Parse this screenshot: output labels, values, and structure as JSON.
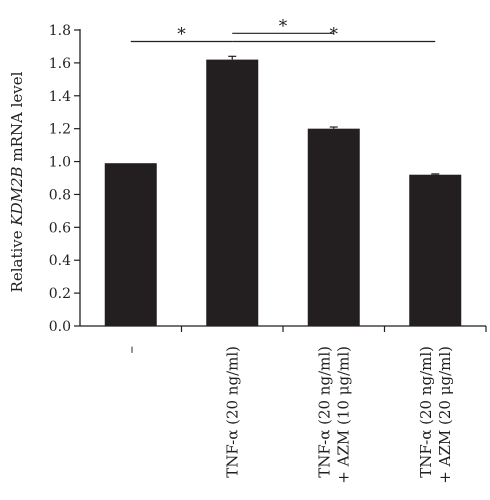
{
  "chart_data": {
    "type": "bar",
    "title": "",
    "ylabel_parts": [
      {
        "text": "Relative ",
        "italic": false
      },
      {
        "text": "KDM2B",
        "italic": true
      },
      {
        "text": " mRNA level",
        "italic": false
      }
    ],
    "ylim": [
      0,
      1.8
    ],
    "yticks": [
      "0.0",
      "0.2",
      "0.4",
      "0.6",
      "0.8",
      "1.0",
      "1.2",
      "1.4",
      "1.6",
      "1.8"
    ],
    "categories": [
      [
        "–"
      ],
      [
        "TNF-α (20 ng/ml)"
      ],
      [
        "TNF-α (20 ng/ml)",
        "+ AZM (10 μg/ml)"
      ],
      [
        "TNF-α (20 ng/ml)",
        "+ AZM (20 μg/ml)"
      ]
    ],
    "values": [
      0.99,
      1.62,
      1.2,
      0.92
    ],
    "errors": [
      0.0,
      0.02,
      0.01,
      0.005
    ],
    "bar_color": "#231f20",
    "significance": [
      {
        "from": 0,
        "to": 1,
        "label": "*",
        "y": 1.73
      },
      {
        "from": 1,
        "to": 2,
        "label": "*",
        "y": 1.78
      },
      {
        "from": 1,
        "to": 3,
        "label": "*",
        "y": 1.73
      }
    ]
  }
}
